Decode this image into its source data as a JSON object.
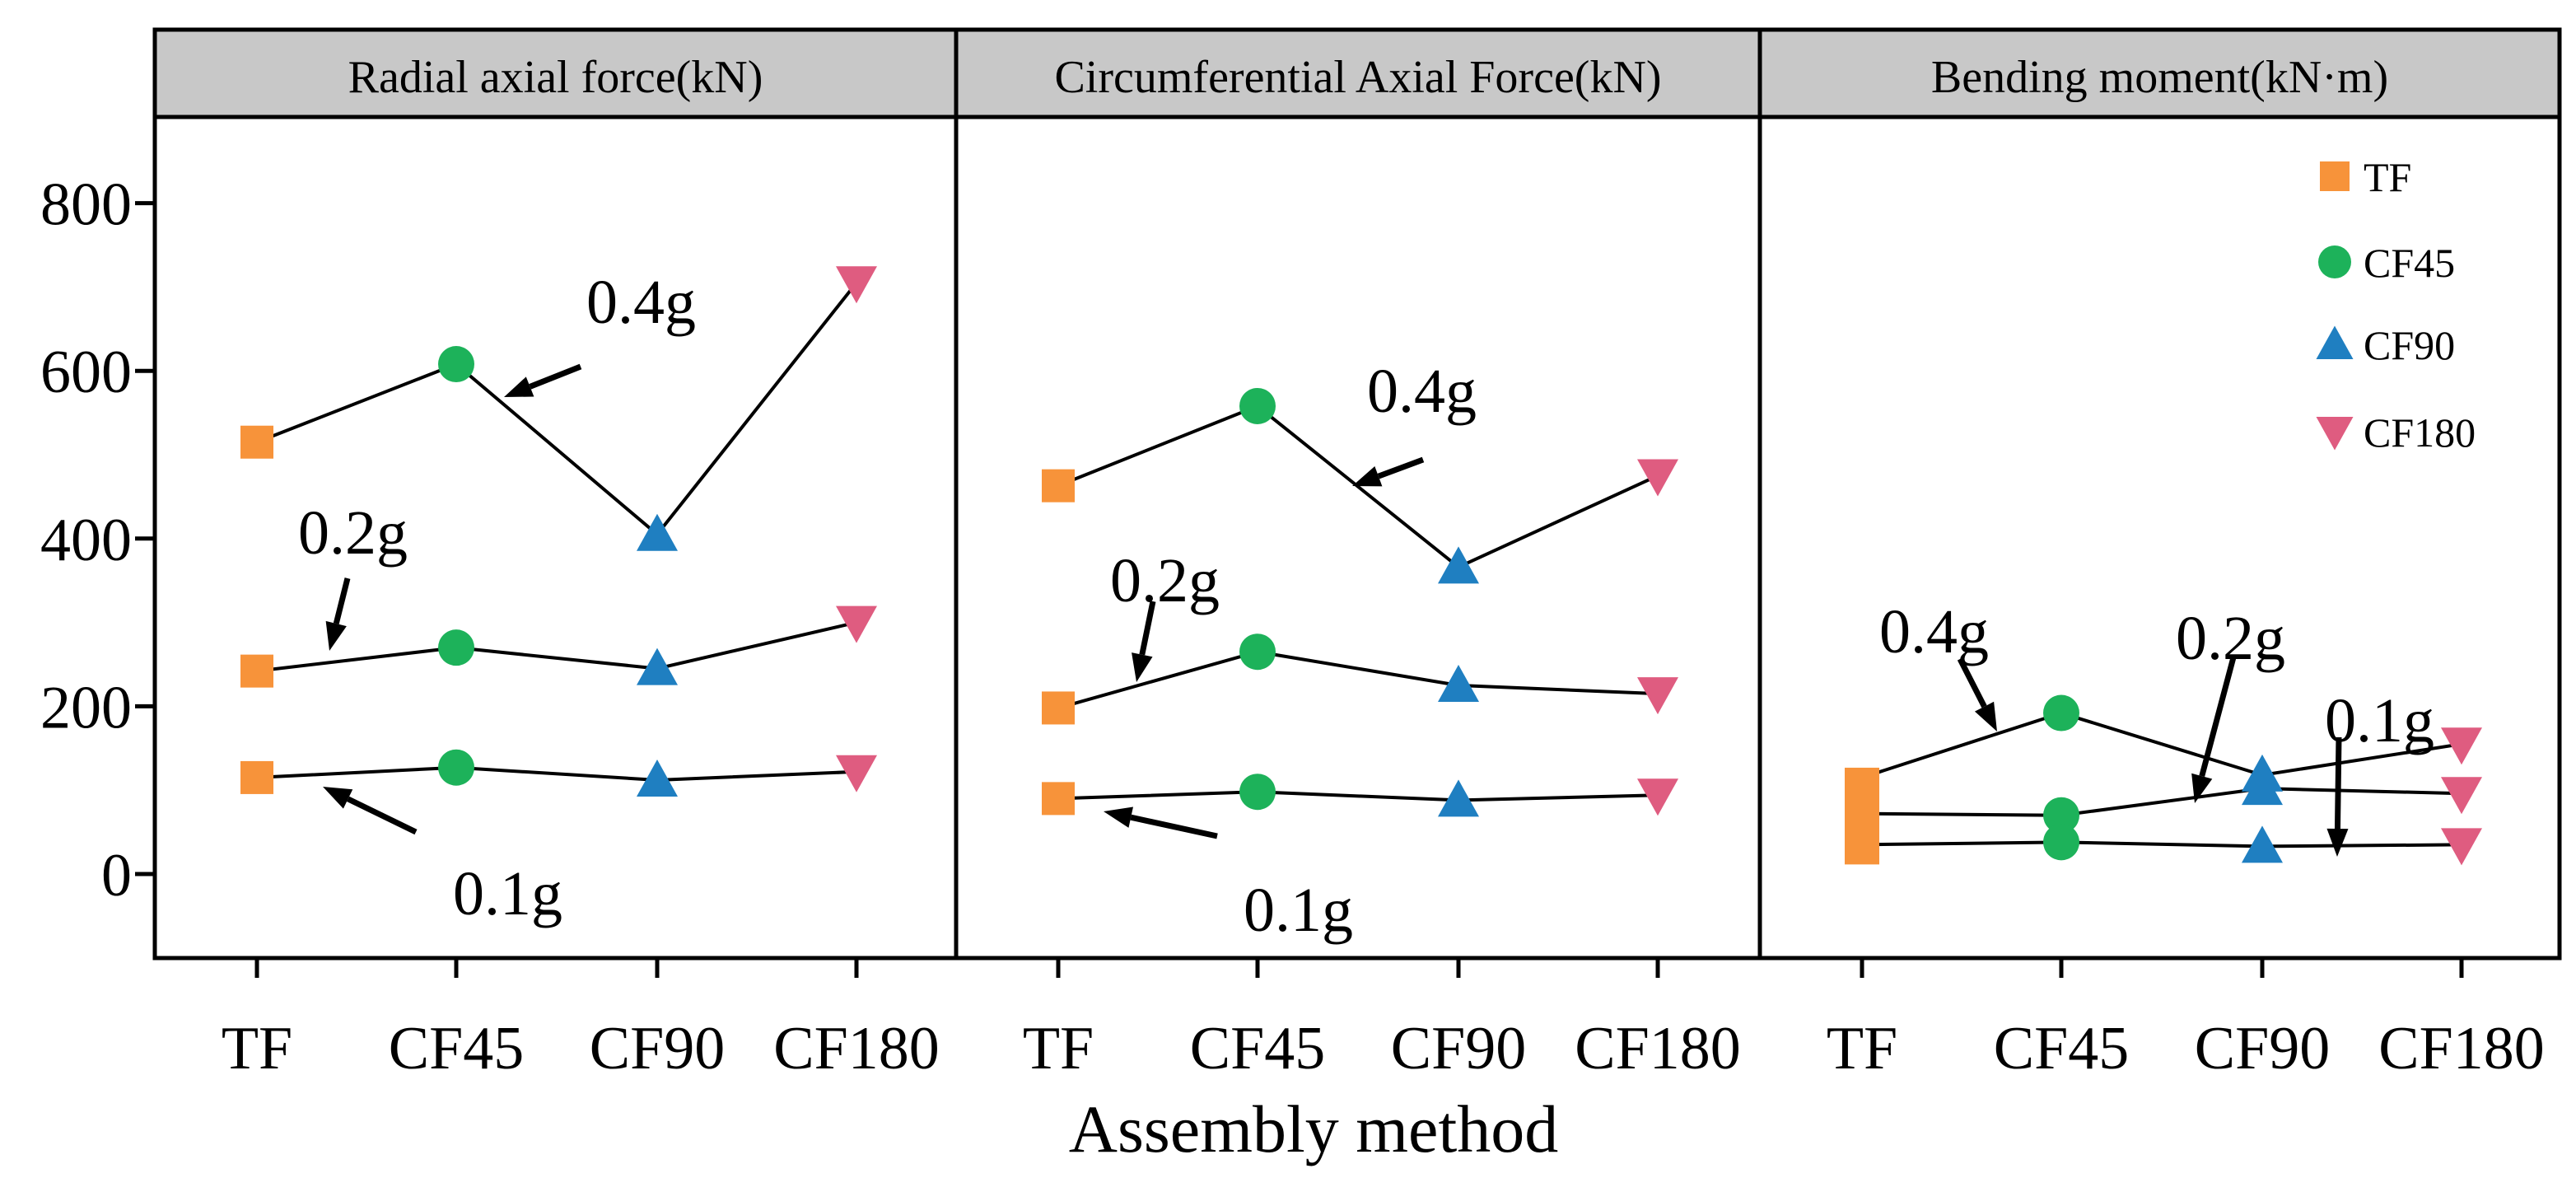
{
  "chart_data": {
    "type": "scatter",
    "xlabel": "Assembly method",
    "ylabel": "",
    "categories": [
      "TF",
      "CF45",
      "CF90",
      "CF180"
    ],
    "ylim": [
      -100,
      900
    ],
    "yticks": [
      "0",
      "200",
      "400",
      "600",
      "800"
    ],
    "marker_colors": {
      "TF": "#F7933A",
      "CF45": "#1DB25A",
      "CF90": "#1F7FC1",
      "CF180": "#DF5C80"
    },
    "legend": {
      "position": "top-right",
      "entries": [
        {
          "label": "TF",
          "marker": "square"
        },
        {
          "label": "CF45",
          "marker": "circle"
        },
        {
          "label": "CF90",
          "marker": "triangle-up"
        },
        {
          "label": "CF180",
          "marker": "triangle-down"
        }
      ]
    },
    "panels": [
      {
        "title": "Radial axial force(kN)",
        "series": [
          {
            "name": "0.4g",
            "values": [
              515,
              608,
              405,
              705
            ]
          },
          {
            "name": "0.2g",
            "values": [
              242,
              270,
              245,
              300
            ]
          },
          {
            "name": "0.1g",
            "values": [
              115,
              127,
              112,
              122
            ]
          }
        ],
        "annotations": [
          "0.4g",
          "0.2g",
          "0.1g"
        ]
      },
      {
        "title": "Circumferential Axial Force(kN)",
        "series": [
          {
            "name": "0.4g",
            "values": [
              463,
              558,
              366,
              475
            ]
          },
          {
            "name": "0.2g",
            "values": [
              198,
              265,
              225,
              215
            ]
          },
          {
            "name": "0.1g",
            "values": [
              90,
              98,
              88,
              94
            ]
          }
        ],
        "annotations": [
          "0.4g",
          "0.2g",
          "0.1g"
        ]
      },
      {
        "title": "Bending moment(kN·m)",
        "series": [
          {
            "name": "0.4g",
            "values": [
              115,
              192,
              118,
              155
            ]
          },
          {
            "name": "0.2g",
            "values": [
              72,
              70,
              102,
              96
            ]
          },
          {
            "name": "0.1g",
            "values": [
              35,
              38,
              33,
              35
            ]
          }
        ],
        "annotations": [
          "0.4g",
          "0.2g",
          "0.1g"
        ]
      }
    ]
  }
}
